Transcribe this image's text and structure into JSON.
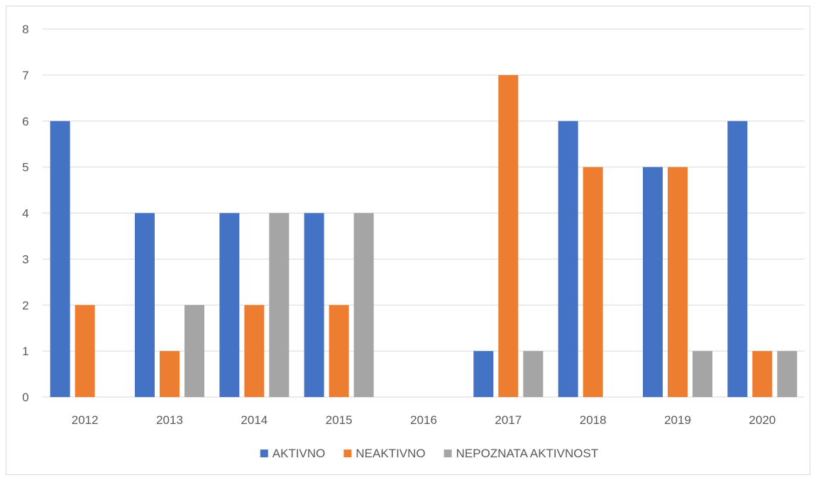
{
  "chart_data": {
    "type": "bar",
    "title": "",
    "xlabel": "",
    "ylabel": "",
    "categories": [
      "2012",
      "2013",
      "2014",
      "2015",
      "2016",
      "2017",
      "2018",
      "2019",
      "2020"
    ],
    "ylim": [
      0,
      8
    ],
    "yticks": [
      0,
      1,
      2,
      3,
      4,
      5,
      6,
      7,
      8
    ],
    "grid": true,
    "legend_position": "bottom",
    "series": [
      {
        "name": "AKTIVNO",
        "color": "#4472c4",
        "values": [
          6,
          4,
          4,
          4,
          0,
          1,
          6,
          5,
          6
        ]
      },
      {
        "name": "NEAKTIVNO",
        "color": "#ed7d31",
        "values": [
          2,
          1,
          2,
          2,
          0,
          7,
          5,
          5,
          1
        ]
      },
      {
        "name": "NEPOZNATA AKTIVNOST",
        "color": "#a5a5a5",
        "values": [
          0,
          2,
          4,
          4,
          0,
          1,
          0,
          1,
          1
        ]
      }
    ]
  }
}
